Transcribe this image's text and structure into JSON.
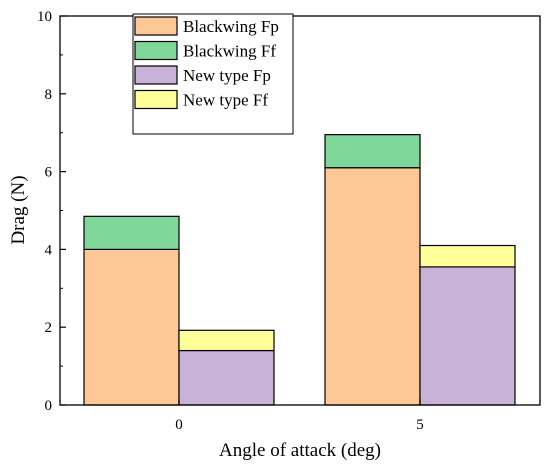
{
  "chart_data": {
    "type": "bar",
    "stacked": true,
    "categories": [
      "0",
      "5"
    ],
    "xlabel": "Angle of attack (deg)",
    "ylabel": "Drag (N)",
    "ylim": [
      0,
      10
    ],
    "yticks": [
      0,
      2,
      4,
      6,
      8,
      10
    ],
    "grid": false,
    "legend_position": "top-left",
    "groups": [
      {
        "name": "Blackwing",
        "series": [
          {
            "name": "Blackwing Fp",
            "color": "#FDC895",
            "values": [
              4.0,
              6.1
            ]
          },
          {
            "name": "Blackwing Ff",
            "color": "#7FD799",
            "values": [
              0.85,
              0.85
            ]
          }
        ]
      },
      {
        "name": "New type",
        "series": [
          {
            "name": "New type Fp",
            "color": "#C8B2D8",
            "values": [
              1.4,
              3.55
            ]
          },
          {
            "name": "New type Ff",
            "color": "#FFFF99",
            "values": [
              0.52,
              0.55
            ]
          }
        ]
      }
    ]
  }
}
